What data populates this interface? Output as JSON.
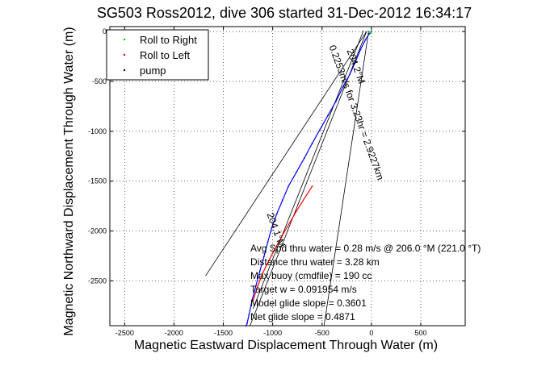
{
  "chart_data": {
    "type": "line",
    "title": "SG503 Ross2012, dive 306 started 31-Dec-2012 16:34:17",
    "xlabel": "Magnetic Eastward Displacement Through Water (m)",
    "ylabel": "Magnetic Northward Displacement Through Water (m)",
    "xlim": [
      -2650,
      950
    ],
    "ylim": [
      -2950,
      50
    ],
    "xticks": [
      -2500,
      -2000,
      -1500,
      -1000,
      -500,
      0,
      500
    ],
    "yticks": [
      0,
      -500,
      -1000,
      -1500,
      -2000,
      -2500
    ],
    "grid": true,
    "legend": {
      "position": "top-left",
      "entries": [
        {
          "label": "Roll to Right",
          "color": "#00cc00",
          "marker": "dot"
        },
        {
          "label": "Roll to Left",
          "color": "#ff0000",
          "marker": "dot"
        },
        {
          "label": "pump",
          "color": "#000000",
          "marker": "dot"
        }
      ]
    },
    "series": [
      {
        "color": "#0000ff",
        "x": [
          0,
          -20,
          -60,
          -110,
          -160,
          -220,
          -290,
          -360,
          -440,
          -520,
          -600,
          -680,
          -760,
          -840,
          -900,
          -960,
          -1010,
          -1050,
          -1090,
          -1130,
          -1170,
          -1210,
          -1240,
          -1260,
          -1270
        ],
        "y": [
          0,
          -20,
          -80,
          -180,
          -300,
          -430,
          -560,
          -700,
          -840,
          -980,
          -1120,
          -1270,
          -1410,
          -1550,
          -1690,
          -1830,
          -1970,
          -2110,
          -2260,
          -2400,
          -2550,
          -2700,
          -2840,
          -2930,
          -2950
        ]
      },
      {
        "color": "#ff0000",
        "x": [
          -600,
          -760,
          -900,
          -1000,
          -1100,
          -1150,
          -1200
        ],
        "y": [
          -1550,
          -1800,
          -2040,
          -2220,
          -2420,
          -2550,
          -2700
        ]
      }
    ],
    "reference_lines": [
      {
        "x": [
          -50,
          -1680
        ],
        "y": [
          0,
          -2450
        ]
      },
      {
        "x": [
          -50,
          -1230
        ],
        "y": [
          0,
          -2950
        ]
      },
      {
        "x": [
          -30,
          -480
        ],
        "y": [
          -10,
          -2950
        ]
      },
      {
        "x": [
          -80,
          -1200
        ],
        "y": [
          10,
          -2780
        ]
      }
    ],
    "course_labels": [
      {
        "text": "0.2253m/s for 3.23hr = 2.9227km",
        "anchor_x": -430,
        "anchor_y": -150
      },
      {
        "text": "204.2°M",
        "anchor_x": -250,
        "anchor_y": -190
      },
      {
        "text": "204.1°M",
        "anchor_x": -1060,
        "anchor_y": -1830
      }
    ],
    "annotations": [
      "Avg Spd thru water =  0.28 m/s @ 206.0   °M (221.0 °T)",
      "Distance thru water =  3.28 km",
      "Max buoy (cmdfile) = 190 cc",
      "Target w = 0.091954 m/s",
      "Model glide slope = 0.3601",
      "Net glide slope = 0.4871"
    ]
  }
}
